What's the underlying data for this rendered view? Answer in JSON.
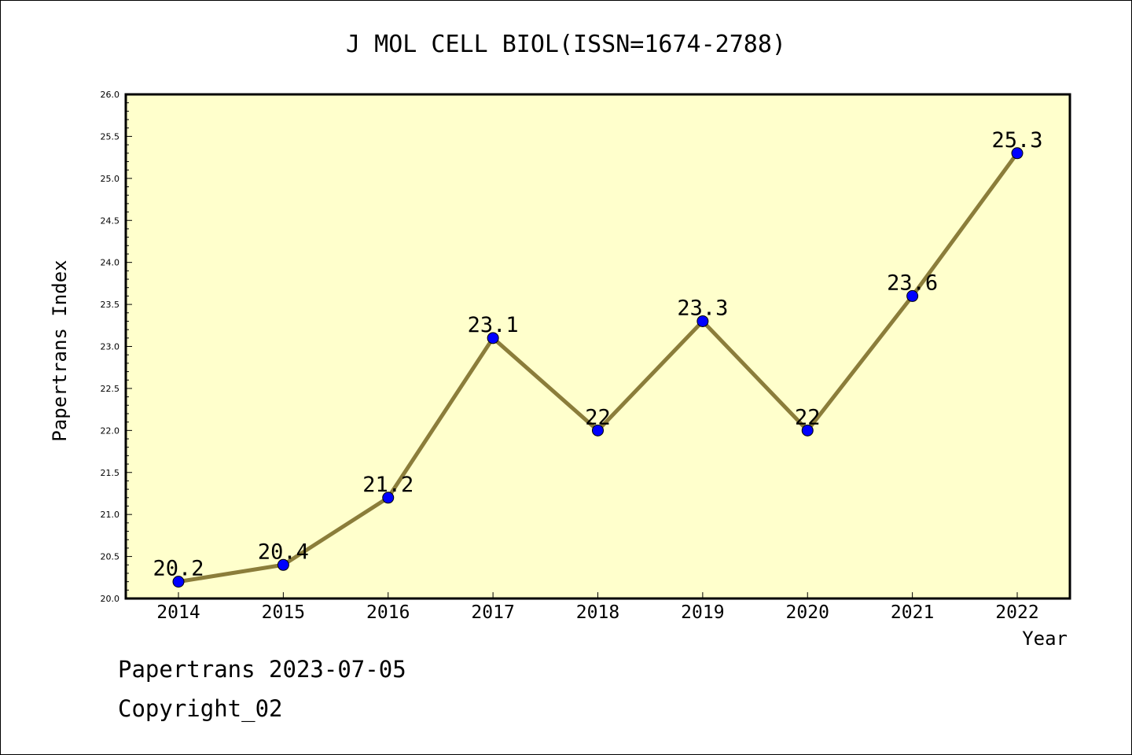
{
  "footer": {
    "line1": "Papertrans 2023-07-05",
    "line2": "Copyright_02"
  },
  "colors": {
    "plot_bg": "#ffffcc",
    "line": "#8b7d3a",
    "marker": "#0000ff",
    "axis": "#000000"
  },
  "chart_data": {
    "type": "line",
    "title": "J MOL CELL BIOL(ISSN=1674-2788)",
    "xlabel": "Year",
    "ylabel": "Papertrans Index",
    "categories": [
      "2014",
      "2015",
      "2016",
      "2017",
      "2018",
      "2019",
      "2020",
      "2021",
      "2022"
    ],
    "values": [
      20.2,
      20.4,
      21.2,
      23.1,
      22.0,
      23.3,
      22.0,
      23.6,
      25.3
    ],
    "data_labels": [
      "20.2",
      "20.4",
      "21.2",
      "23.1",
      "22",
      "23.3",
      "22",
      "23.6",
      "25.3"
    ],
    "ylim": [
      20.0,
      26.0
    ],
    "yticks": [
      "20.0",
      "20.5",
      "21.0",
      "21.5",
      "22.0",
      "22.5",
      "23.0",
      "23.5",
      "24.0",
      "24.5",
      "25.0",
      "25.5",
      "26.0"
    ],
    "grid": false,
    "legend": "none"
  }
}
